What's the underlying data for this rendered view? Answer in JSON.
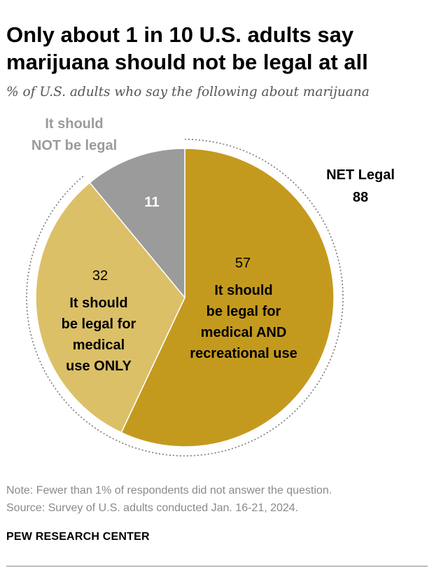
{
  "title": "Only about 1 in 10 U.S. adults say marijuana should not be legal at all",
  "subtitle": "% of U.S. adults who say the following about marijuana",
  "chart_data": {
    "type": "pie",
    "title": "Only about 1 in 10 U.S. adults say marijuana should not be legal at all",
    "slices": [
      {
        "value": 57,
        "label_lines": [
          "It should",
          "be legal for",
          "medical AND",
          "recreational use"
        ],
        "color": "#c49a1e"
      },
      {
        "value": 32,
        "label_lines": [
          "It should",
          "be legal for",
          "medical",
          "use ONLY"
        ],
        "color": "#dcc068"
      },
      {
        "value": 11,
        "label_lines": [
          "It should",
          "NOT be legal"
        ],
        "color": "#9b9b9b"
      }
    ],
    "net": {
      "label": "NET Legal",
      "value": "88"
    }
  },
  "note": "Note: Fewer than 1% of respondents did not answer the question.",
  "source": "Source: Survey of U.S. adults conducted Jan. 16-21, 2024.",
  "brand": "PEW RESEARCH CENTER"
}
